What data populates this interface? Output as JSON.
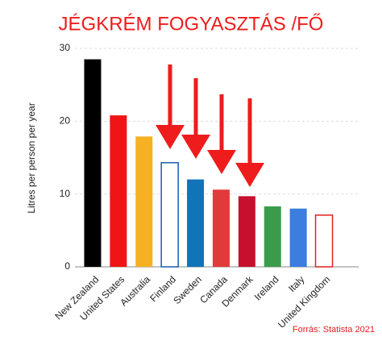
{
  "chart_data": {
    "type": "bar",
    "title": "JÉGKRÉM FOGYASZTÁS /FŐ",
    "y_label": "Litres per person per year",
    "source": "Forrás: Statista 2021",
    "categories": [
      "New Zealand",
      "United States",
      "Australia",
      "Finland",
      "Sweden",
      "Canada",
      "Denmark",
      "Ireland",
      "Italy",
      "United Kingdom"
    ],
    "values": [
      28.5,
      20.8,
      17.9,
      14.3,
      12.0,
      10.6,
      9.7,
      8.3,
      8.0,
      7.1
    ],
    "colors": [
      "#000000",
      "#f01414",
      "#f5b122",
      "#1a5bb5",
      "#1173b8",
      "#e03a3a",
      "#c8102e",
      "#3a9c4a",
      "#3b7de0",
      "#e02020"
    ],
    "fill_styles": [
      "solid",
      "solid",
      "solid",
      "outline",
      "solid",
      "solid",
      "solid",
      "solid",
      "solid",
      "outline"
    ],
    "ylim": [
      0,
      30
    ],
    "yticks": [
      0,
      10,
      20,
      30
    ],
    "grid": true
  }
}
